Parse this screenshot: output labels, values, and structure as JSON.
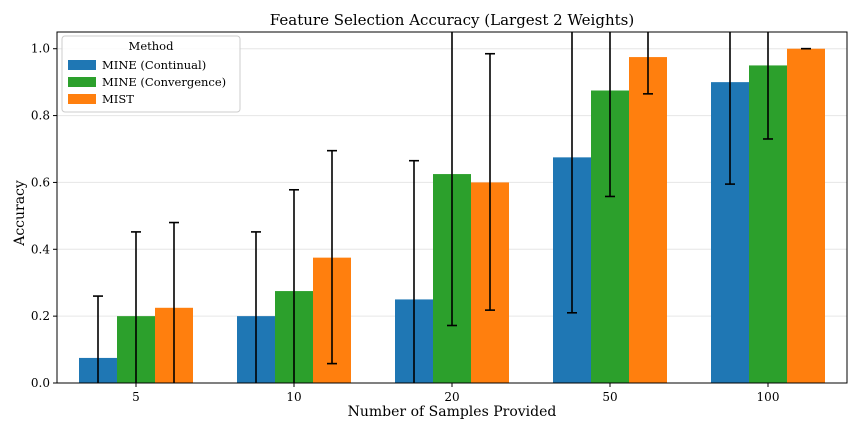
{
  "chart_data": {
    "type": "bar",
    "title": "Feature Selection Accuracy (Largest 2 Weights)",
    "xlabel": "Number of Samples Provided",
    "ylabel": "Accuracy",
    "categories": [
      "5",
      "10",
      "20",
      "50",
      "100"
    ],
    "ylim": [
      0,
      1.05
    ],
    "yticks": [
      0.0,
      0.2,
      0.4,
      0.6,
      0.8,
      1.0
    ],
    "ytick_labels": [
      "0.0",
      "0.2",
      "0.4",
      "0.6",
      "0.8",
      "1.0"
    ],
    "grid": true,
    "legend": {
      "title": "Method",
      "position": "top-left"
    },
    "series": [
      {
        "name": "MINE (Continual)",
        "color": "#1f77b4",
        "values": [
          0.075,
          0.2,
          0.25,
          0.675,
          0.9
        ],
        "err_low": [
          0.0,
          0.0,
          0.0,
          0.21,
          0.595
        ],
        "err_high": [
          0.26,
          0.452,
          0.665,
          1.14,
          1.2
        ]
      },
      {
        "name": "MINE (Convergence)",
        "color": "#2ca02c",
        "values": [
          0.2,
          0.275,
          0.625,
          0.875,
          0.95
        ],
        "err_low": [
          0.0,
          0.0,
          0.172,
          0.558,
          0.73
        ],
        "err_high": [
          0.452,
          0.578,
          1.08,
          1.19,
          1.17
        ]
      },
      {
        "name": "MIST",
        "color": "#ff7f0e",
        "values": [
          0.225,
          0.375,
          0.6,
          0.975,
          1.0
        ],
        "err_low": [
          0.0,
          0.058,
          0.218,
          0.865,
          1.0
        ],
        "err_high": [
          0.48,
          0.695,
          0.985,
          1.085,
          1.0
        ]
      }
    ]
  }
}
